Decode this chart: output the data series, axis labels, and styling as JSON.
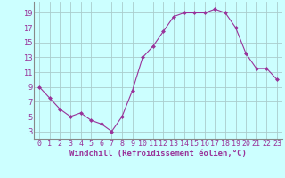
{
  "xlabel": "Windchill (Refroidissement éolien,°C)",
  "x": [
    0,
    1,
    2,
    3,
    4,
    5,
    6,
    7,
    8,
    9,
    10,
    11,
    12,
    13,
    14,
    15,
    16,
    17,
    18,
    19,
    20,
    21,
    22,
    23
  ],
  "y": [
    9.0,
    7.5,
    6.0,
    5.0,
    5.5,
    4.5,
    4.0,
    3.0,
    5.0,
    8.5,
    13.0,
    14.5,
    16.5,
    18.5,
    19.0,
    19.0,
    19.0,
    19.5,
    19.0,
    17.0,
    13.5,
    11.5,
    11.5,
    10.0
  ],
  "line_color": "#993399",
  "marker": "D",
  "marker_size": 2.5,
  "background_color": "#ccffff",
  "grid_color": "#aacccc",
  "ylim": [
    2,
    20.5
  ],
  "xlim": [
    -0.5,
    23.5
  ],
  "yticks": [
    3,
    5,
    7,
    9,
    11,
    13,
    15,
    17,
    19
  ],
  "xtick_labels": [
    "0",
    "1",
    "2",
    "3",
    "4",
    "5",
    "6",
    "7",
    "8",
    "9",
    "10",
    "11",
    "12",
    "13",
    "14",
    "15",
    "16",
    "17",
    "18",
    "19",
    "20",
    "21",
    "22",
    "23"
  ],
  "label_fontsize": 6.5,
  "tick_fontsize": 6.0
}
